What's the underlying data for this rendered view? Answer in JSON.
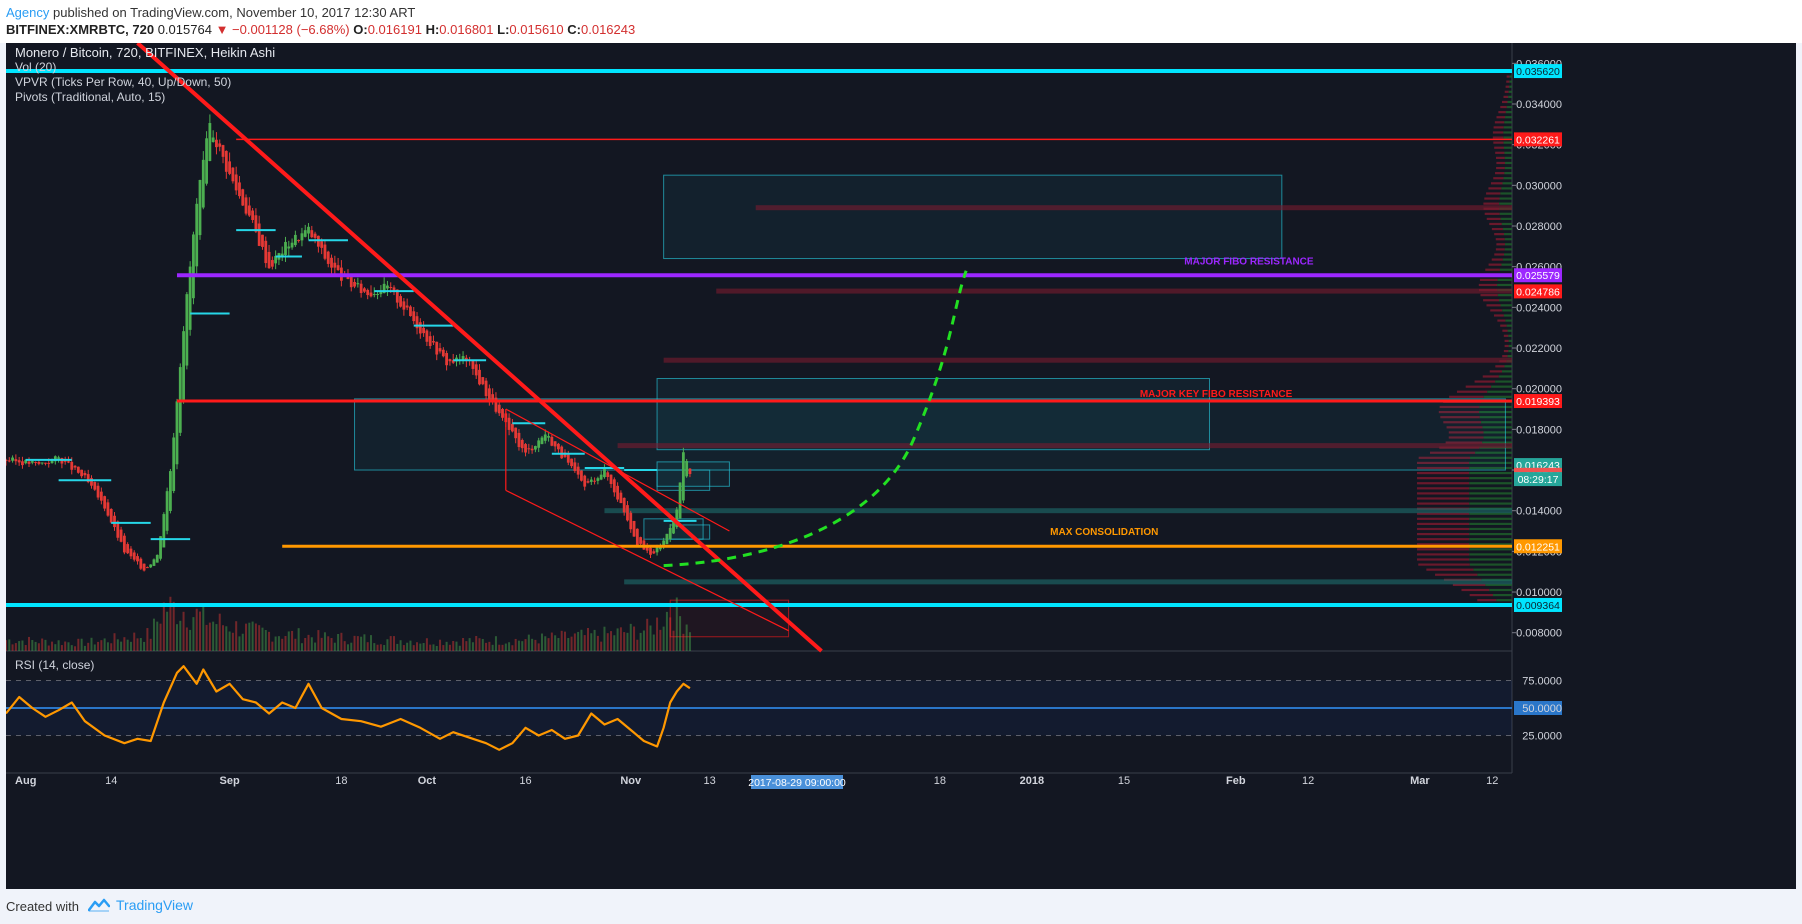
{
  "header": {
    "author": "Agency",
    "published_text": "published on TradingView.com, November 10, 2017 12:30 ART",
    "symbol": "BITFINEX:XMRBTC, 720",
    "last": "0.015764",
    "change": "▼ −0.001128 (−6.68%)",
    "o_label": "O:",
    "o_value": "0.016191",
    "h_label": "H:",
    "h_value": "0.016801",
    "l_label": "L:",
    "l_value": "0.015610",
    "c_label": "C:",
    "c_value": "0.016243"
  },
  "legend": {
    "title": "Monero / Bitcoin, 720, BITFINEX, Heikin Ashi",
    "vol": "Vol (20)",
    "vpvr": "VPVR (Ticks Per Row, 40, Up/Down, 50)",
    "pivots": "Pivots (Traditional, Auto, 15)",
    "rsi": "RSI (14, close)"
  },
  "footer": {
    "created_with": "Created with",
    "brand": "TradingView"
  },
  "colors": {
    "up": "#4caf50",
    "down": "#e53935",
    "cyan": "#00e5ff",
    "red": "#ff1a1a",
    "purple": "#9c27ff",
    "orange": "#ff9800",
    "rsi": "#ff9800",
    "green_dash": "#22e022"
  },
  "chart_data": {
    "type": "candlestick",
    "scale": "price",
    "y_axis": {
      "ticks": [
        "0.036000",
        "0.034000",
        "0.032000",
        "0.030000",
        "0.028000",
        "0.026000",
        "0.024000",
        "0.022000",
        "0.020000",
        "0.018000",
        "0.016000",
        "0.014000",
        "0.012000",
        "0.010000",
        "0.008000"
      ],
      "tick_values": [
        0.036,
        0.034,
        0.032,
        0.03,
        0.028,
        0.026,
        0.024,
        0.022,
        0.02,
        0.018,
        0.016,
        0.014,
        0.012,
        0.01,
        0.008
      ],
      "ylim": [
        0.0071,
        0.037
      ]
    },
    "x_axis": {
      "labels": [
        "Aug",
        "14",
        "Sep",
        "18",
        "Oct",
        "16",
        "Nov",
        "13",
        "18",
        "2018",
        "15",
        "Feb",
        "12",
        "Mar",
        "12"
      ],
      "bold": [
        "Aug",
        "Sep",
        "Oct",
        "Nov",
        "2018",
        "Feb",
        "Mar"
      ],
      "label_dates": [
        "2017-08-01",
        "2017-08-14",
        "2017-09-01",
        "2017-09-18",
        "2017-10-01",
        "2017-10-16",
        "2017-11-01",
        "2017-11-13",
        "2017-12-18",
        "2018-01-01",
        "2018-01-15",
        "2018-02-01",
        "2018-02-12",
        "2018-03-01",
        "2018-03-12"
      ],
      "xlim": [
        "2017-07-29",
        "2018-03-15"
      ],
      "crosshair_label": "2017-08-29 09:00:00",
      "crosshair_date": "2017-08-29"
    },
    "price_trajectory": [
      [
        "2017-07-29",
        0.0165
      ],
      [
        "2017-08-03",
        0.0163
      ],
      [
        "2017-08-06",
        0.0166
      ],
      [
        "2017-08-10",
        0.0156
      ],
      [
        "2017-08-13",
        0.0142
      ],
      [
        "2017-08-16",
        0.012
      ],
      [
        "2017-08-19",
        0.0111
      ],
      [
        "2017-08-21",
        0.0118
      ],
      [
        "2017-08-23",
        0.016
      ],
      [
        "2017-08-25",
        0.023
      ],
      [
        "2017-08-27",
        0.029
      ],
      [
        "2017-08-29",
        0.033
      ],
      [
        "2017-09-01",
        0.0305
      ],
      [
        "2017-09-04",
        0.0285
      ],
      [
        "2017-09-07",
        0.026
      ],
      [
        "2017-09-10",
        0.0272
      ],
      [
        "2017-09-13",
        0.0278
      ],
      [
        "2017-09-16",
        0.0262
      ],
      [
        "2017-09-19",
        0.0252
      ],
      [
        "2017-09-22",
        0.0247
      ],
      [
        "2017-09-25",
        0.025
      ],
      [
        "2017-09-28",
        0.0238
      ],
      [
        "2017-10-01",
        0.0225
      ],
      [
        "2017-10-04",
        0.0213
      ],
      [
        "2017-10-07",
        0.0215
      ],
      [
        "2017-10-10",
        0.0198
      ],
      [
        "2017-10-13",
        0.0182
      ],
      [
        "2017-10-16",
        0.0168
      ],
      [
        "2017-10-19",
        0.0178
      ],
      [
        "2017-10-22",
        0.0165
      ],
      [
        "2017-10-25",
        0.0152
      ],
      [
        "2017-10-28",
        0.016
      ],
      [
        "2017-10-31",
        0.014
      ],
      [
        "2017-11-02",
        0.0124
      ],
      [
        "2017-11-04",
        0.0118
      ],
      [
        "2017-11-06",
        0.0125
      ],
      [
        "2017-11-08",
        0.014
      ],
      [
        "2017-11-09",
        0.0168
      ],
      [
        "2017-11-10",
        0.0158
      ]
    ],
    "volume_relative": [
      [
        "2017-07-29",
        0.2
      ],
      [
        "2017-08-10",
        0.15
      ],
      [
        "2017-08-20",
        0.3
      ],
      [
        "2017-08-22",
        0.8
      ],
      [
        "2017-08-25",
        0.75
      ],
      [
        "2017-08-29",
        0.55
      ],
      [
        "2017-09-05",
        0.35
      ],
      [
        "2017-09-15",
        0.25
      ],
      [
        "2017-10-01",
        0.18
      ],
      [
        "2017-10-15",
        0.2
      ],
      [
        "2017-10-28",
        0.3
      ],
      [
        "2017-11-04",
        0.4
      ],
      [
        "2017-11-07",
        0.75
      ],
      [
        "2017-11-10",
        0.5
      ]
    ],
    "rsi": {
      "levels": [
        "75.0000",
        "50.0000",
        "25.0000"
      ],
      "level_values": [
        75,
        50,
        25
      ],
      "ylim": [
        0,
        100
      ],
      "values": [
        [
          "2017-07-29",
          45
        ],
        [
          "2017-07-31",
          60
        ],
        [
          "2017-08-02",
          50
        ],
        [
          "2017-08-04",
          42
        ],
        [
          "2017-08-06",
          48
        ],
        [
          "2017-08-08",
          55
        ],
        [
          "2017-08-10",
          38
        ],
        [
          "2017-08-13",
          25
        ],
        [
          "2017-08-16",
          18
        ],
        [
          "2017-08-18",
          22
        ],
        [
          "2017-08-20",
          20
        ],
        [
          "2017-08-22",
          55
        ],
        [
          "2017-08-24",
          82
        ],
        [
          "2017-08-25",
          88
        ],
        [
          "2017-08-27",
          72
        ],
        [
          "2017-08-28",
          85
        ],
        [
          "2017-08-30",
          65
        ],
        [
          "2017-09-01",
          72
        ],
        [
          "2017-09-03",
          58
        ],
        [
          "2017-09-05",
          55
        ],
        [
          "2017-09-07",
          45
        ],
        [
          "2017-09-09",
          55
        ],
        [
          "2017-09-11",
          50
        ],
        [
          "2017-09-13",
          72
        ],
        [
          "2017-09-15",
          50
        ],
        [
          "2017-09-18",
          40
        ],
        [
          "2017-09-21",
          38
        ],
        [
          "2017-09-24",
          33
        ],
        [
          "2017-09-27",
          40
        ],
        [
          "2017-09-30",
          32
        ],
        [
          "2017-10-03",
          22
        ],
        [
          "2017-10-05",
          28
        ],
        [
          "2017-10-08",
          22
        ],
        [
          "2017-10-10",
          18
        ],
        [
          "2017-10-12",
          12
        ],
        [
          "2017-10-14",
          18
        ],
        [
          "2017-10-16",
          32
        ],
        [
          "2017-10-18",
          25
        ],
        [
          "2017-10-20",
          30
        ],
        [
          "2017-10-22",
          22
        ],
        [
          "2017-10-24",
          25
        ],
        [
          "2017-10-26",
          45
        ],
        [
          "2017-10-28",
          35
        ],
        [
          "2017-10-30",
          40
        ],
        [
          "2017-11-01",
          30
        ],
        [
          "2017-11-03",
          20
        ],
        [
          "2017-11-05",
          15
        ],
        [
          "2017-11-06",
          32
        ],
        [
          "2017-11-07",
          55
        ],
        [
          "2017-11-08",
          65
        ],
        [
          "2017-11-09",
          72
        ],
        [
          "2017-11-10",
          68
        ]
      ]
    },
    "horizontal_levels": [
      {
        "price": 0.03562,
        "label": "0.035620",
        "color": "#00e5ff",
        "kind": "thick-cyan"
      },
      {
        "price": 0.032261,
        "label": "0.032261",
        "color": "#ff1a1a",
        "kind": "red"
      },
      {
        "price": 0.025579,
        "label": "0.025579",
        "color": "#9c27ff",
        "kind": "purple"
      },
      {
        "price": 0.024786,
        "label": "0.024786",
        "color": "#ff1a1a",
        "kind": "label-only"
      },
      {
        "price": 0.019393,
        "label": "0.019393",
        "color": "#ff1a1a",
        "kind": "thick-red"
      },
      {
        "price": 0.016243,
        "label": "0.016243",
        "color": "#26a69a",
        "kind": "label-only"
      },
      {
        "price": 0.015764,
        "label": "0.015764",
        "color": "#ef5350",
        "kind": "label-only"
      },
      {
        "price": 0.012251,
        "label": "0.012251",
        "color": "#ff9800",
        "kind": "thick-orange"
      },
      {
        "price": 0.009364,
        "label": "0.009364",
        "color": "#00e5ff",
        "kind": "thick-cyan"
      }
    ],
    "countdown_label": "08:29:17",
    "annotations": [
      {
        "text": "MAJOR FIBO RESISTANCE",
        "color": "#9c27ff",
        "date": "2018-02-03",
        "price": 0.0261
      },
      {
        "text": "MAJOR KEY FIBO RESISTANCE",
        "color": "#ff1a1a",
        "date": "2018-01-29",
        "price": 0.0196
      },
      {
        "text": "MAX CONSOLIDATION",
        "color": "#ff9800",
        "date": "2018-01-12",
        "price": 0.0128
      }
    ]
  }
}
